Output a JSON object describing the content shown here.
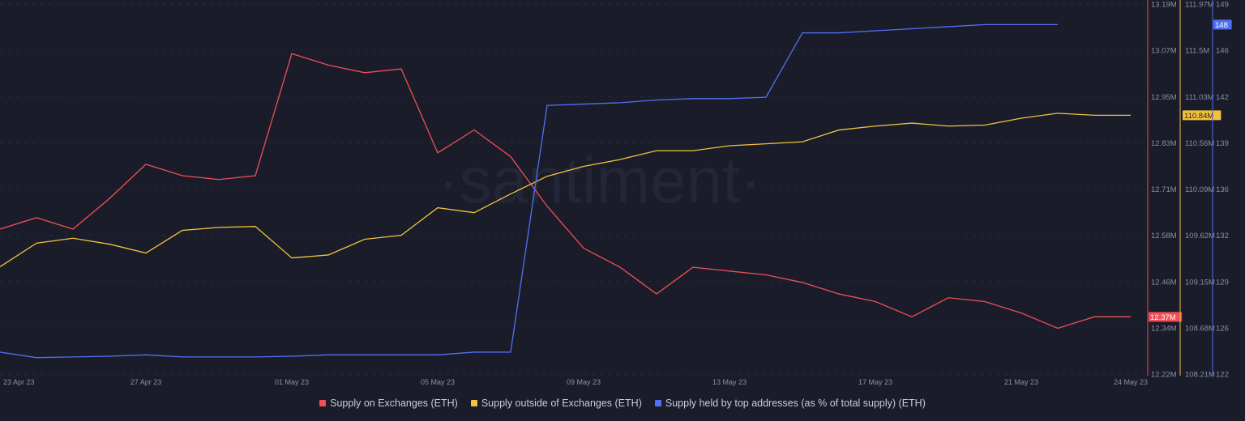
{
  "watermark": "·santiment·",
  "chart_data": {
    "type": "line",
    "x": [
      "23 Apr 23",
      "24 Apr 23",
      "25 Apr 23",
      "26 Apr 23",
      "27 Apr 23",
      "28 Apr 23",
      "29 Apr 23",
      "30 Apr 23",
      "01 May 23",
      "02 May 23",
      "03 May 23",
      "04 May 23",
      "05 May 23",
      "06 May 23",
      "07 May 23",
      "08 May 23",
      "09 May 23",
      "10 May 23",
      "11 May 23",
      "12 May 23",
      "13 May 23",
      "14 May 23",
      "15 May 23",
      "16 May 23",
      "17 May 23",
      "18 May 23",
      "19 May 23",
      "20 May 23",
      "21 May 23",
      "22 May 23",
      "23 May 23",
      "24 May 23"
    ],
    "x_tick_labels": [
      "23 Apr 23",
      "27 Apr 23",
      "01 May 23",
      "05 May 23",
      "09 May 23",
      "13 May 23",
      "17 May 23",
      "21 May 23",
      "24 May 23"
    ],
    "grid": true,
    "legend_position": "bottom",
    "axes": [
      {
        "id": "red",
        "unit": "M",
        "range": [
          12.22,
          13.19
        ],
        "tick_labels": [
          "13.19M",
          "13.07M",
          "12.95M",
          "12.83M",
          "12.71M",
          "12.58M",
          "12.46M",
          "12.34M",
          "12.22M"
        ],
        "last_value_label": "12.37M"
      },
      {
        "id": "yellow",
        "unit": "M",
        "range": [
          108.21,
          111.97
        ],
        "tick_labels": [
          "111.97M",
          "111.5M",
          "111.03M",
          "110.56M",
          "110.09M",
          "109.62M",
          "109.15M",
          "108.68M",
          "108.21M"
        ],
        "last_value_label": "110.84M"
      },
      {
        "id": "blue",
        "unit": "",
        "range": [
          122,
          149
        ],
        "tick_labels": [
          "149",
          "146",
          "142",
          "139",
          "136",
          "132",
          "129",
          "126",
          "122"
        ],
        "last_value_label": "148"
      }
    ],
    "series": [
      {
        "name": "Supply on Exchanges (ETH)",
        "axis": 0,
        "color": "#ef4f55",
        "values": [
          12.6,
          12.63,
          12.6,
          12.68,
          12.77,
          12.74,
          12.73,
          12.74,
          13.06,
          13.03,
          13.01,
          13.02,
          12.8,
          12.86,
          12.79,
          12.66,
          12.55,
          12.5,
          12.43,
          12.5,
          12.49,
          12.48,
          12.46,
          12.43,
          12.41,
          12.37,
          12.42,
          12.41,
          12.38,
          12.34,
          12.37,
          12.37
        ]
      },
      {
        "name": "Supply outside of Exchanges (ETH)",
        "axis": 1,
        "color": "#f2c23c",
        "values": [
          109.3,
          109.54,
          109.59,
          109.53,
          109.44,
          109.67,
          109.7,
          109.71,
          109.39,
          109.42,
          109.58,
          109.62,
          109.9,
          109.85,
          110.04,
          110.22,
          110.32,
          110.39,
          110.48,
          110.48,
          110.53,
          110.55,
          110.57,
          110.69,
          110.73,
          110.76,
          110.73,
          110.74,
          110.81,
          110.86,
          110.84,
          110.84
        ]
      },
      {
        "name": "Supply held by top addresses (as % of total supply) (ETH)",
        "axis": 2,
        "color": "#5070f5",
        "values": [
          123.6,
          123.2,
          123.25,
          123.3,
          123.4,
          123.25,
          123.25,
          123.25,
          123.3,
          123.4,
          123.4,
          123.4,
          123.4,
          123.6,
          123.6,
          141.6,
          141.7,
          141.8,
          142.0,
          142.1,
          142.1,
          142.2,
          146.9,
          146.9,
          147.05,
          147.2,
          147.35,
          147.5,
          147.5,
          147.5,
          null,
          null
        ]
      }
    ]
  }
}
